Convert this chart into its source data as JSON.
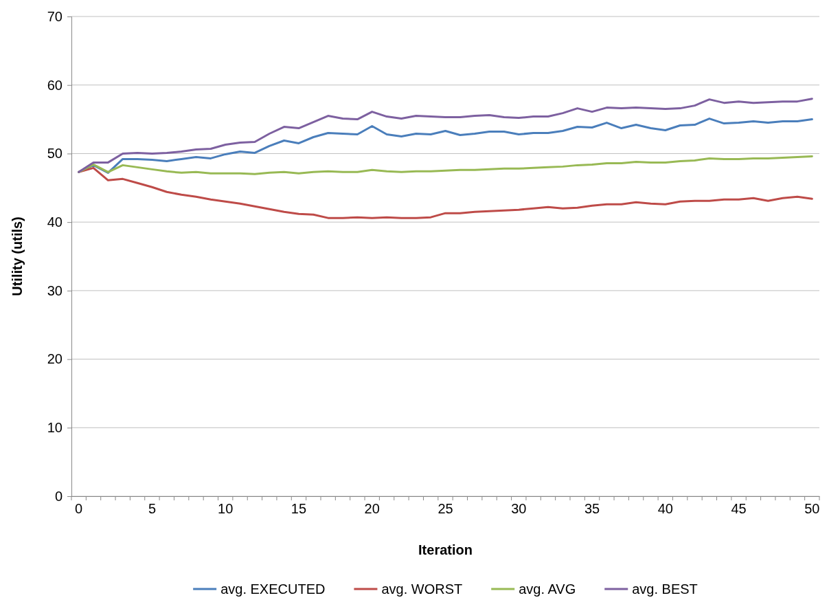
{
  "chart_data": {
    "type": "line",
    "xlabel": "Iteration",
    "ylabel": "Utility (utils)",
    "categories": [
      "0",
      null,
      null,
      null,
      null,
      "5",
      null,
      null,
      null,
      null,
      "10",
      null,
      null,
      null,
      null,
      "15",
      null,
      null,
      null,
      null,
      "20",
      null,
      null,
      null,
      null,
      "25",
      null,
      null,
      null,
      null,
      "30",
      null,
      null,
      null,
      null,
      "35",
      null,
      null,
      null,
      null,
      "40",
      null,
      null,
      null,
      null,
      "45",
      null,
      null,
      null,
      null,
      "50"
    ],
    "ylim": [
      0,
      70
    ],
    "yticks": [
      0,
      10,
      20,
      30,
      40,
      50,
      60,
      70
    ],
    "grid": "y",
    "legend": "bottom",
    "marker": "none",
    "line_style": "solid",
    "series": [
      {
        "name": "avg. EXECUTED",
        "color": "#4a7ebb",
        "values": [
          47.3,
          48.3,
          47.2,
          49.2,
          49.2,
          49.1,
          48.9,
          49.2,
          49.5,
          49.3,
          49.9,
          50.3,
          50.1,
          51.1,
          51.9,
          51.5,
          52.4,
          53.0,
          52.9,
          52.8,
          54.0,
          52.8,
          52.5,
          52.9,
          52.8,
          53.3,
          52.7,
          52.9,
          53.2,
          53.2,
          52.8,
          53.0,
          53.0,
          53.3,
          53.9,
          53.8,
          54.5,
          53.7,
          54.2,
          53.7,
          53.4,
          54.1,
          54.2,
          55.1,
          54.4,
          54.5,
          54.7,
          54.5,
          54.7,
          54.7,
          55.0
        ]
      },
      {
        "name": "avg. WORST",
        "color": "#be4b48",
        "values": [
          47.3,
          47.9,
          46.1,
          46.3,
          45.7,
          45.1,
          44.4,
          44.0,
          43.7,
          43.3,
          43.0,
          42.7,
          42.3,
          41.9,
          41.5,
          41.2,
          41.1,
          40.6,
          40.6,
          40.7,
          40.6,
          40.7,
          40.6,
          40.6,
          40.7,
          41.3,
          41.3,
          41.5,
          41.6,
          41.7,
          41.8,
          42.0,
          42.2,
          42.0,
          42.1,
          42.4,
          42.6,
          42.6,
          42.9,
          42.7,
          42.6,
          43.0,
          43.1,
          43.1,
          43.3,
          43.3,
          43.5,
          43.1,
          43.5,
          43.7,
          43.4
        ]
      },
      {
        "name": "avg. AVG",
        "color": "#98b954",
        "values": [
          47.3,
          48.4,
          47.3,
          48.3,
          48.0,
          47.7,
          47.4,
          47.2,
          47.3,
          47.1,
          47.1,
          47.1,
          47.0,
          47.2,
          47.3,
          47.1,
          47.3,
          47.4,
          47.3,
          47.3,
          47.6,
          47.4,
          47.3,
          47.4,
          47.4,
          47.5,
          47.6,
          47.6,
          47.7,
          47.8,
          47.8,
          47.9,
          48.0,
          48.1,
          48.3,
          48.4,
          48.6,
          48.6,
          48.8,
          48.7,
          48.7,
          48.9,
          49.0,
          49.3,
          49.2,
          49.2,
          49.3,
          49.3,
          49.4,
          49.5,
          49.6
        ]
      },
      {
        "name": "avg. BEST",
        "color": "#7d60a0",
        "values": [
          47.3,
          48.7,
          48.7,
          50.0,
          50.1,
          50.0,
          50.1,
          50.3,
          50.6,
          50.7,
          51.3,
          51.6,
          51.7,
          52.9,
          53.9,
          53.7,
          54.6,
          55.5,
          55.1,
          55.0,
          56.1,
          55.4,
          55.1,
          55.5,
          55.4,
          55.3,
          55.3,
          55.5,
          55.6,
          55.3,
          55.2,
          55.4,
          55.4,
          55.9,
          56.6,
          56.1,
          56.7,
          56.6,
          56.7,
          56.6,
          56.5,
          56.6,
          57.0,
          57.9,
          57.4,
          57.6,
          57.4,
          57.5,
          57.6,
          57.6,
          58.0
        ]
      }
    ]
  }
}
